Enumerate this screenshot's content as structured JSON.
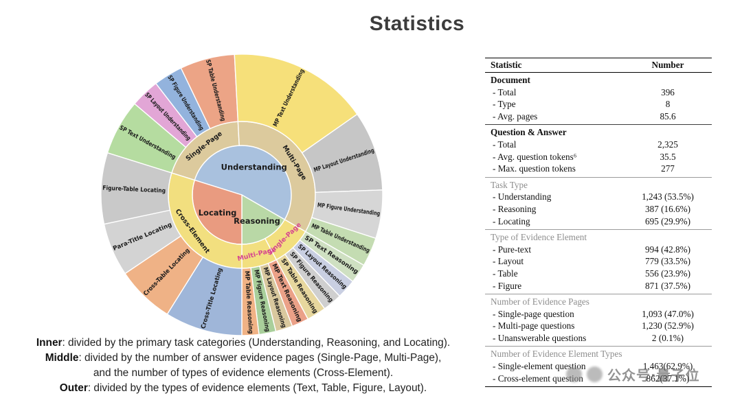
{
  "title": "Statistics",
  "chart_data": {
    "type": "sunburst",
    "title": "Statistics",
    "start_angle_deg": 287.4,
    "angle_unit": "degrees clockwise from 12 o'clock; segment angles proportional to question share",
    "rings": {
      "inner": {
        "description": "primary task categories",
        "segments": [
          {
            "label": "Understanding",
            "angle": 192.6,
            "color": "#a9c1de"
          },
          {
            "label": "Reasoning",
            "angle": 60.0,
            "color": "#b9d8a6"
          },
          {
            "label": "Locating",
            "angle": 107.4,
            "color": "#e99b80"
          }
        ]
      },
      "middle": {
        "description": "number of answer evidence pages (Single-Page, Multi-Page) and Cross-Element",
        "segments": [
          {
            "label": "Single-Page",
            "parent": "Understanding",
            "angle": 69.6,
            "color": "#dcca9d"
          },
          {
            "label": "Multi-Page",
            "parent": "Understanding",
            "angle": 123.0,
            "color": "#dcca9d"
          },
          {
            "label": "Single-Page",
            "parent": "Reasoning",
            "angle": 32.0,
            "color": "#f2df7f",
            "label_color": "#d6478f"
          },
          {
            "label": "Multi-Page",
            "parent": "Reasoning",
            "angle": 28.0,
            "color": "#f2df7f",
            "label_color": "#d6478f"
          },
          {
            "label": "Cross-Element",
            "parent": "Locating",
            "angle": 107.4,
            "color": "#f2df7f"
          }
        ]
      },
      "outer": {
        "description": "types of evidence elements (Text, Table, Figure, Layout)",
        "segments": [
          {
            "label": "SP Text Understanding",
            "angle": 23.0,
            "color": "#b5dca0"
          },
          {
            "label": "SP Layout Understanding",
            "angle": 12.0,
            "color": "#e2a6d6"
          },
          {
            "label": "SP Figure Understanding",
            "angle": 12.0,
            "color": "#93b3dd"
          },
          {
            "label": "SP Table Understanding",
            "angle": 22.6,
            "color": "#eca486"
          },
          {
            "label": "MP Text Understanding",
            "angle": 58.0,
            "color": "#f6e07a"
          },
          {
            "label": "MP Layout Understanding",
            "angle": 33.0,
            "color": "#c6c6c6"
          },
          {
            "label": "MP Figure Understanding",
            "angle": 20.0,
            "color": "#d6d6d6"
          },
          {
            "label": "MP Table Understanding",
            "angle": 12.0,
            "color": "#c4dcb2"
          },
          {
            "label": "SP Text Reasoning",
            "angle": 8.0,
            "color": "#cfe0c2"
          },
          {
            "label": "SP Layout Reasoning",
            "angle": 8.0,
            "color": "#c9cfe2"
          },
          {
            "label": "SP Figure Reasoning",
            "angle": 8.0,
            "color": "#cfcfcf"
          },
          {
            "label": "SP Table Reasoning",
            "angle": 8.0,
            "color": "#e7d79e"
          },
          {
            "label": "MP Text Reasoning",
            "angle": 7.0,
            "color": "#eba188"
          },
          {
            "label": "MP Layout Reasoning",
            "angle": 7.0,
            "color": "#d9c89e"
          },
          {
            "label": "MP Figure Reasoning",
            "angle": 7.0,
            "color": "#a9cf9b"
          },
          {
            "label": "MP Table Reasoning",
            "angle": 7.0,
            "color": "#f0b285"
          },
          {
            "label": "Cross-Title Locating",
            "angle": 32.0,
            "color": "#9fb6d9"
          },
          {
            "label": "Cross-Table Locating",
            "angle": 24.0,
            "color": "#efb286"
          },
          {
            "label": "Para-Title Locating",
            "angle": 22.0,
            "color": "#d3d3d3"
          },
          {
            "label": "Figure-Table Locating",
            "angle": 29.4,
            "color": "#c9c9c9"
          }
        ]
      }
    }
  },
  "caption": {
    "lines": [
      {
        "term": "Inner",
        "text": ": divided by the primary task categories (Understanding, Reasoning, and Locating)."
      },
      {
        "term": "Middle",
        "text": ": divided by the number of answer evidence pages (Single-Page, Multi-Page),"
      },
      {
        "term": "",
        "text": "and the number of types of evidence elements (Cross-Element)."
      },
      {
        "term": "Outer",
        "text": ": divided by the types of evidence elements (Text, Table, Figure, Layout)."
      }
    ]
  },
  "table": {
    "headers": [
      "Statistic",
      "Number"
    ],
    "sections": [
      {
        "title": "Document",
        "style": "bold",
        "rows": [
          [
            "- Total",
            "396"
          ],
          [
            "- Type",
            "8"
          ],
          [
            "- Avg. pages",
            "85.6"
          ]
        ]
      },
      {
        "title": "Question & Answer",
        "style": "bold",
        "rows": [
          [
            "- Total",
            "2,325"
          ],
          [
            "- Avg. question tokens⁶",
            "35.5"
          ],
          [
            "- Max. question tokens",
            "277"
          ]
        ]
      },
      {
        "title": "Task Type",
        "style": "gray",
        "rows": [
          [
            "- Understanding",
            "1,243 (53.5%)"
          ],
          [
            "- Reasoning",
            "387 (16.6%)"
          ],
          [
            "- Locating",
            "695 (29.9%)"
          ]
        ]
      },
      {
        "title": "Type of Evidence Element",
        "style": "gray",
        "rows": [
          [
            "- Pure-text",
            "994 (42.8%)"
          ],
          [
            "- Layout",
            "779 (33.5%)"
          ],
          [
            "- Table",
            "556 (23.9%)"
          ],
          [
            "- Figure",
            "871 (37.5%)"
          ]
        ]
      },
      {
        "title": "Number of Evidence Pages",
        "style": "gray",
        "rows": [
          [
            "- Single-page question",
            "1,093 (47.0%)"
          ],
          [
            "- Multi-page questions",
            "1,230 (52.9%)"
          ],
          [
            "- Unanswerable questions",
            "2 (0.1%)"
          ]
        ]
      },
      {
        "title": "Number of Evidence Element Types",
        "style": "gray",
        "rows": [
          [
            "- Single-element question",
            "1,463(62.9%)"
          ],
          [
            "- Cross-element question",
            "862(37.1%)"
          ]
        ]
      }
    ]
  },
  "watermark": {
    "text": "公众号·量子位"
  }
}
